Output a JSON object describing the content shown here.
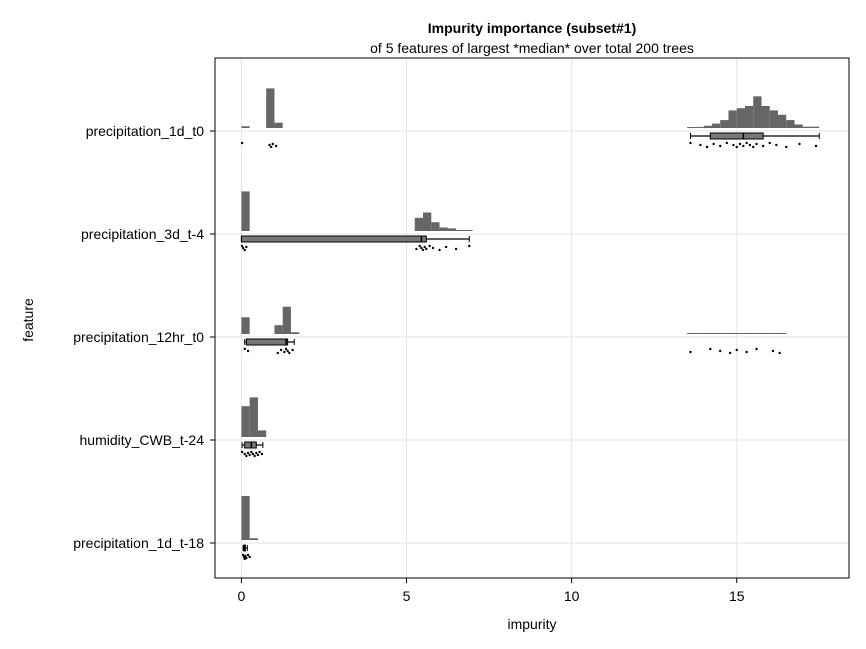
{
  "chart_data": {
    "type": "histogram-box-scatter",
    "title": "Impurity importance (subset#1)",
    "subtitle": "of 5 features of largest *median* over total 200 trees",
    "xlabel": "impurity",
    "ylabel": "feature",
    "xlim": [
      -0.8,
      18.4
    ],
    "x_ticks": [
      0,
      5,
      10,
      15
    ],
    "grid": true,
    "colors": {
      "bar": "#666666",
      "box": "#777777",
      "point": "#000000",
      "grid": "#e6e6e6"
    },
    "features": [
      {
        "name": "precipitation_1d_t0",
        "histogram": [
          {
            "x0": 0.0,
            "x1": 0.25,
            "h": 0.04
          },
          {
            "x0": 0.75,
            "x1": 1.0,
            "h": 0.9
          },
          {
            "x0": 1.0,
            "x1": 1.25,
            "h": 0.12
          },
          {
            "x0": 13.5,
            "x1": 13.75,
            "h": 0.01
          },
          {
            "x0": 13.75,
            "x1": 14.0,
            "h": 0.02
          },
          {
            "x0": 14.0,
            "x1": 14.25,
            "h": 0.05
          },
          {
            "x0": 14.25,
            "x1": 14.5,
            "h": 0.1
          },
          {
            "x0": 14.5,
            "x1": 14.75,
            "h": 0.18
          },
          {
            "x0": 14.75,
            "x1": 15.0,
            "h": 0.4
          },
          {
            "x0": 15.0,
            "x1": 15.25,
            "h": 0.45
          },
          {
            "x0": 15.25,
            "x1": 15.5,
            "h": 0.5
          },
          {
            "x0": 15.5,
            "x1": 15.75,
            "h": 0.72
          },
          {
            "x0": 15.75,
            "x1": 16.0,
            "h": 0.5
          },
          {
            "x0": 16.0,
            "x1": 16.25,
            "h": 0.4
          },
          {
            "x0": 16.25,
            "x1": 16.5,
            "h": 0.3
          },
          {
            "x0": 16.5,
            "x1": 16.75,
            "h": 0.18
          },
          {
            "x0": 16.75,
            "x1": 17.0,
            "h": 0.08
          },
          {
            "x0": 17.0,
            "x1": 17.5,
            "h": 0.03
          }
        ],
        "box": {
          "whisker_low": 13.6,
          "q1": 14.2,
          "median": 15.2,
          "q3": 15.8,
          "whisker_high": 17.5
        },
        "points": [
          0.02,
          0.85,
          0.9,
          0.95,
          1.05,
          13.6,
          13.9,
          14.1,
          14.3,
          14.5,
          14.7,
          14.9,
          15.0,
          15.1,
          15.2,
          15.3,
          15.4,
          15.5,
          15.6,
          15.8,
          16.0,
          16.2,
          16.5,
          16.9,
          17.4
        ]
      },
      {
        "name": "precipitation_3d_t-4",
        "histogram": [
          {
            "x0": 0.0,
            "x1": 0.25,
            "h": 0.9
          },
          {
            "x0": 5.25,
            "x1": 5.5,
            "h": 0.3
          },
          {
            "x0": 5.5,
            "x1": 5.75,
            "h": 0.42
          },
          {
            "x0": 5.75,
            "x1": 6.0,
            "h": 0.2
          },
          {
            "x0": 6.0,
            "x1": 6.25,
            "h": 0.08
          },
          {
            "x0": 6.25,
            "x1": 6.5,
            "h": 0.06
          },
          {
            "x0": 6.5,
            "x1": 6.75,
            "h": 0.02
          },
          {
            "x0": 6.75,
            "x1": 7.0,
            "h": 0.01
          }
        ],
        "box": {
          "whisker_low": 0.0,
          "q1": 0.0,
          "median": 5.45,
          "q3": 5.6,
          "whisker_high": 6.9
        },
        "points": [
          0.02,
          0.05,
          0.1,
          0.15,
          5.3,
          5.4,
          5.45,
          5.5,
          5.55,
          5.6,
          5.7,
          5.8,
          6.0,
          6.2,
          6.5,
          6.9
        ]
      },
      {
        "name": "precipitation_12hr_t0",
        "histogram": [
          {
            "x0": 0.0,
            "x1": 0.25,
            "h": 0.38
          },
          {
            "x0": 1.0,
            "x1": 1.25,
            "h": 0.2
          },
          {
            "x0": 1.25,
            "x1": 1.5,
            "h": 0.62
          },
          {
            "x0": 1.5,
            "x1": 1.75,
            "h": 0.04
          },
          {
            "x0": 13.5,
            "x1": 14.0,
            "h": 0.01
          },
          {
            "x0": 14.0,
            "x1": 14.5,
            "h": 0.01
          },
          {
            "x0": 14.5,
            "x1": 15.0,
            "h": 0.02
          },
          {
            "x0": 15.0,
            "x1": 15.5,
            "h": 0.01
          },
          {
            "x0": 15.5,
            "x1": 16.0,
            "h": 0.01
          },
          {
            "x0": 16.0,
            "x1": 16.5,
            "h": 0.01
          }
        ],
        "box": {
          "whisker_low": 0.1,
          "q1": 0.15,
          "median": 1.35,
          "q3": 1.4,
          "whisker_high": 1.6
        },
        "points": [
          0.1,
          0.2,
          1.1,
          1.2,
          1.3,
          1.35,
          1.4,
          1.45,
          1.55,
          13.6,
          14.2,
          14.5,
          14.8,
          15.0,
          15.3,
          15.6,
          16.1,
          16.3
        ]
      },
      {
        "name": "humidity_CWB_t-24",
        "histogram": [
          {
            "x0": 0.0,
            "x1": 0.25,
            "h": 0.7
          },
          {
            "x0": 0.25,
            "x1": 0.5,
            "h": 0.9
          },
          {
            "x0": 0.5,
            "x1": 0.75,
            "h": 0.15
          }
        ],
        "box": {
          "whisker_low": 0.02,
          "q1": 0.1,
          "median": 0.3,
          "q3": 0.45,
          "whisker_high": 0.65
        },
        "points": [
          0.02,
          0.1,
          0.15,
          0.2,
          0.25,
          0.3,
          0.35,
          0.4,
          0.45,
          0.5,
          0.55,
          0.62
        ]
      },
      {
        "name": "precipitation_1d_t-18",
        "histogram": [
          {
            "x0": 0.0,
            "x1": 0.25,
            "h": 1.0
          },
          {
            "x0": 0.25,
            "x1": 0.5,
            "h": 0.04
          }
        ],
        "box": {
          "whisker_low": 0.05,
          "q1": 0.08,
          "median": 0.1,
          "q3": 0.12,
          "whisker_high": 0.18
        },
        "points": [
          0.05,
          0.08,
          0.1,
          0.12,
          0.15,
          0.2,
          0.25
        ]
      }
    ]
  }
}
